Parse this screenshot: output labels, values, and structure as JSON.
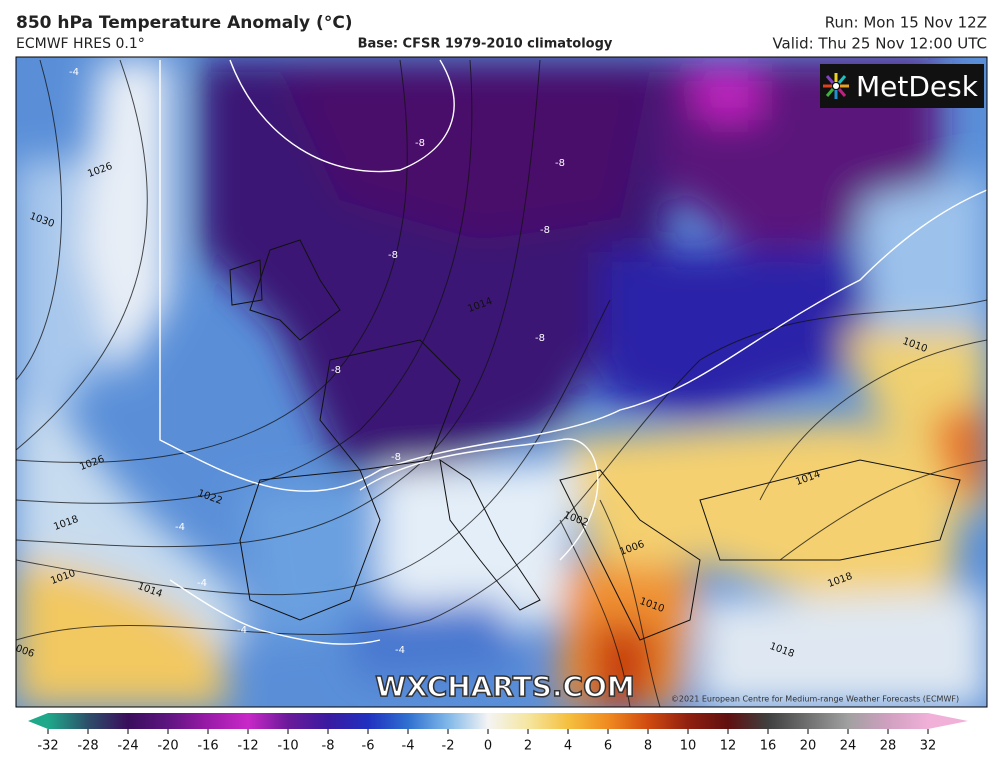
{
  "header": {
    "title": "850 hPa Temperature Anomaly (°C)",
    "model": "ECMWF HRES 0.1°",
    "base": "Base: CFSR 1979-2010 climatology",
    "run": "Run: Mon 15 Nov 12Z",
    "valid": "Valid: Thu 25 Nov 12:00 UTC"
  },
  "logo": "MetDesk",
  "watermark": "WXCHARTS.COM",
  "copyright": "©2021 European Centre for Medium-range Weather Forecasts (ECMWF)",
  "contour_labels": [
    "-4",
    "-8",
    "-8",
    "-8",
    "-8",
    "-8",
    "-8",
    "-8",
    "-4",
    "-4",
    "-4",
    "-4",
    "1026",
    "1030",
    "1026",
    "1022",
    "1018",
    "1014",
    "1010",
    "1006",
    "1014",
    "1002",
    "1006",
    "1010",
    "1014",
    "1018",
    "1018",
    "1010"
  ],
  "colorbar": {
    "ticks": [
      -32,
      -28,
      -24,
      -20,
      -16,
      -12,
      -10,
      -8,
      -6,
      -4,
      -2,
      0,
      2,
      4,
      6,
      8,
      10,
      12,
      16,
      20,
      24,
      28,
      32
    ],
    "colors": [
      "#1fa88a",
      "#2c4f6a",
      "#3a0d5c",
      "#5e1580",
      "#9a1aa8",
      "#c828c8",
      "#6a1a9a",
      "#3a1aa0",
      "#2030c0",
      "#2f70d0",
      "#80b8e8",
      "#f4f4f4",
      "#f5e6a0",
      "#f5c040",
      "#f08a20",
      "#d04a10",
      "#902010",
      "#601010",
      "#404040",
      "#707070",
      "#a0a0a0",
      "#d0a0c0",
      "#f0b0d8"
    ]
  }
}
